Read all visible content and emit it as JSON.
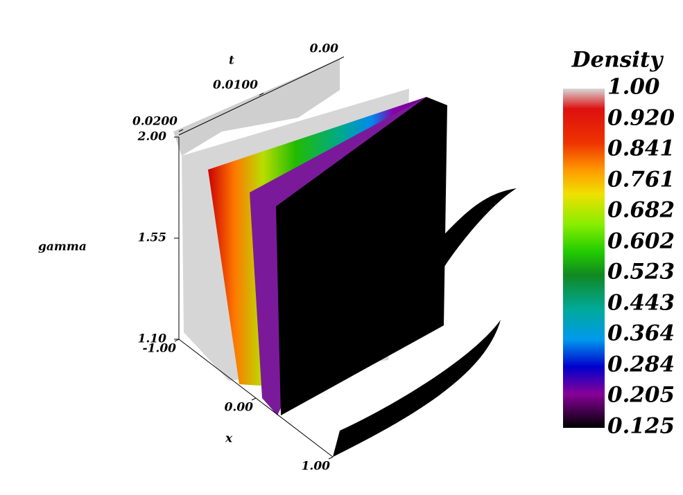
{
  "chart_data": {
    "type": "surface3d",
    "axes": [
      {
        "title": "t",
        "ticks": [
          {
            "value": 0,
            "label": "0.00"
          },
          {
            "value": 0.01,
            "label": "0.0100"
          },
          {
            "value": 0.02,
            "label": "0.0200"
          }
        ]
      },
      {
        "title": "gamma",
        "ticks": [
          {
            "value": 1.1,
            "label": "1.10"
          },
          {
            "value": 1.55,
            "label": "1.55"
          },
          {
            "value": 2,
            "label": "2.00"
          }
        ]
      },
      {
        "title": "x",
        "ticks": [
          {
            "value": -1,
            "label": "-1.00"
          },
          {
            "value": 0,
            "label": "0.00"
          },
          {
            "value": 1,
            "label": "1.00"
          }
        ]
      }
    ],
    "colorbar": {
      "title": "Density",
      "ticks": [
        {
          "value": 1.0,
          "label": "1.00"
        },
        {
          "value": 0.92,
          "label": "0.920"
        },
        {
          "value": 0.841,
          "label": "0.841"
        },
        {
          "value": 0.761,
          "label": "0.761"
        },
        {
          "value": 0.682,
          "label": "0.682"
        },
        {
          "value": 0.602,
          "label": "0.602"
        },
        {
          "value": 0.523,
          "label": "0.523"
        },
        {
          "value": 0.443,
          "label": "0.443"
        },
        {
          "value": 0.364,
          "label": "0.364"
        },
        {
          "value": 0.284,
          "label": "0.284"
        },
        {
          "value": 0.205,
          "label": "0.205"
        },
        {
          "value": 0.125,
          "label": "0.125"
        }
      ]
    }
  }
}
